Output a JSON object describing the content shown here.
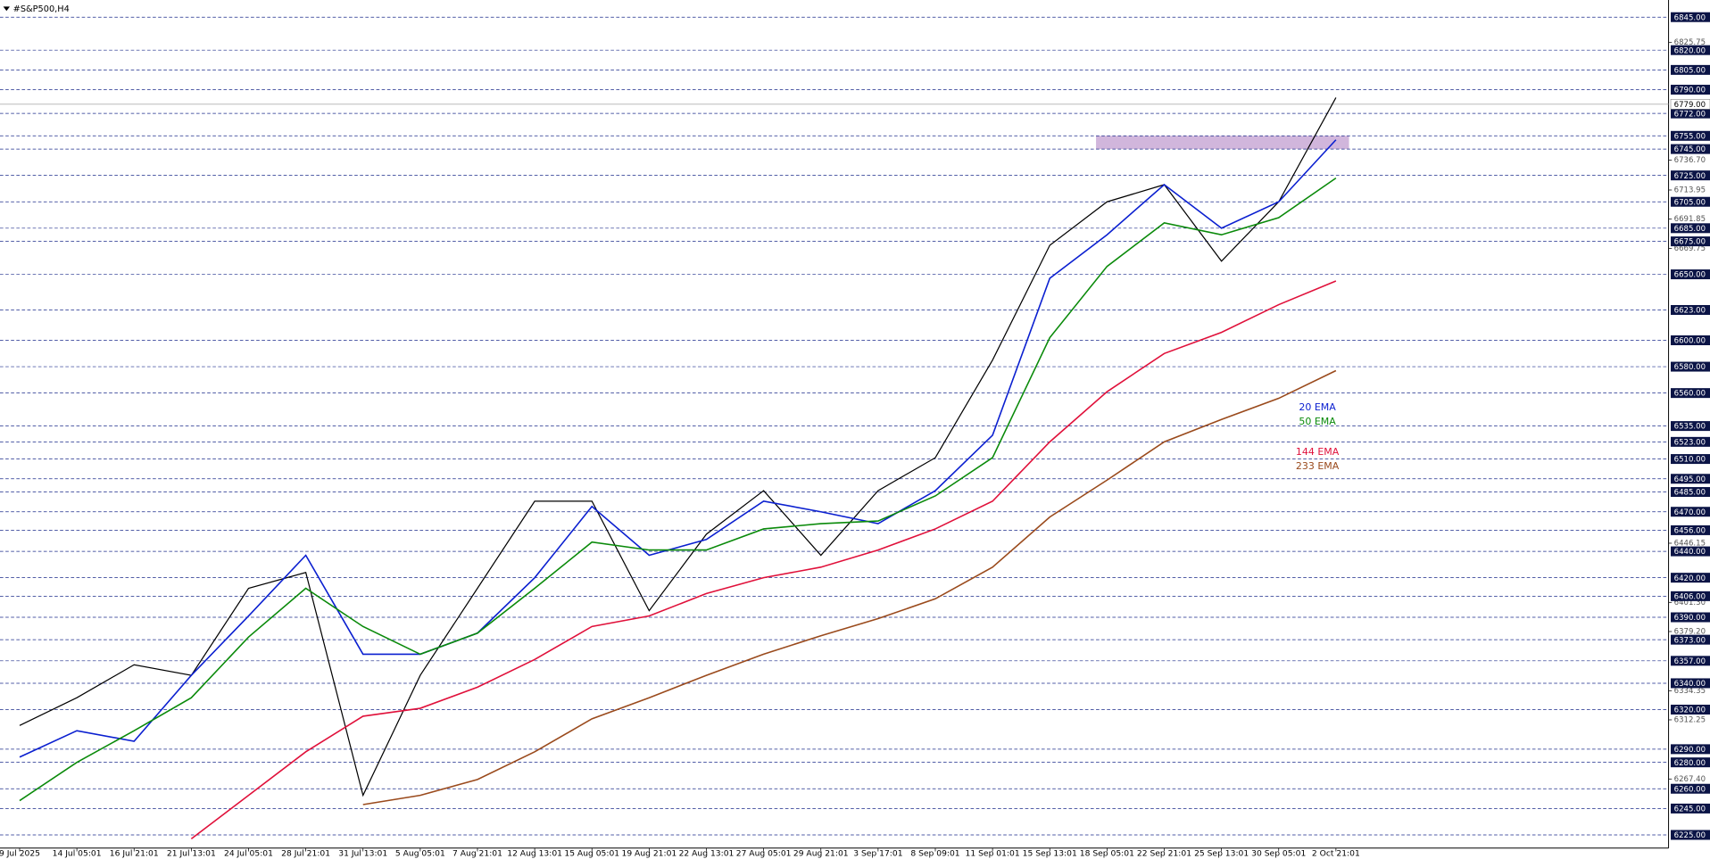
{
  "chart_data": {
    "type": "line",
    "title": "#S&P500,H4",
    "categories": [
      "9 Jul 2025",
      "14 Jul 05:01",
      "16 Jul 21:01",
      "21 Jul 13:01",
      "24 Jul 05:01",
      "28 Jul 21:01",
      "31 Jul 13:01",
      "5 Aug 05:01",
      "7 Aug 21:01",
      "12 Aug 13:01",
      "15 Aug 05:01",
      "19 Aug 21:01",
      "22 Aug 13:01",
      "27 Aug 05:01",
      "29 Aug 21:01",
      "3 Sep 17:01",
      "8 Sep 09:01",
      "11 Sep 01:01",
      "15 Sep 13:01",
      "18 Sep 05:01",
      "22 Sep 21:01",
      "25 Sep 13:01",
      "30 Sep 05:01",
      "2 Oct 21:01"
    ],
    "series": [
      {
        "color": "#000000",
        "values": [
          6308,
          6329,
          6354,
          6346,
          6412,
          6424,
          6255,
          6346,
          6412,
          6478,
          6478,
          6395,
          6453,
          6486,
          6437,
          6486,
          6511,
          6585,
          6672,
          6705,
          6718,
          6660,
          6705,
          6784
        ]
      },
      {
        "name": "20 EMA",
        "color": "#0a1fd0",
        "values": [
          6284,
          6304,
          6296,
          6346,
          6391,
          6437,
          6362,
          6362,
          6378,
          6420,
          6474,
          6437,
          6449,
          6478,
          6470,
          6461,
          6486,
          6528,
          6647,
          6680,
          6718,
          6685,
          6705,
          6752
        ]
      },
      {
        "name": "50 EMA",
        "color": "#0a8a0a",
        "values": [
          6251,
          6280,
          6304,
          6329,
          6375,
          6412,
          6383,
          6362,
          6378,
          6412,
          6447,
          6441,
          6441,
          6457,
          6461,
          6463,
          6482,
          6511,
          6602,
          6656,
          6689,
          6680,
          6693,
          6723
        ]
      },
      {
        "name": "144 EMA",
        "color": "#e0103a",
        "values": [
          null,
          null,
          null,
          6222,
          6255,
          6288,
          6315,
          6321,
          6337,
          6358,
          6383,
          6391,
          6408,
          6420,
          6428,
          6441,
          6457,
          6478,
          6523,
          6561,
          6590,
          6606,
          6627,
          6645
        ]
      },
      {
        "name": "233 EMA",
        "color": "#9a4a1c",
        "values": [
          null,
          null,
          null,
          null,
          null,
          null,
          6248,
          6255,
          6267,
          6288,
          6313,
          6329,
          6346,
          6362,
          6376,
          6389,
          6404,
          6428,
          6466,
          6494,
          6523,
          6540,
          6556,
          6577
        ]
      }
    ],
    "ylim": [
      6215,
      6858
    ],
    "levels": [
      {
        "value": 6845,
        "label": "6845.00"
      },
      {
        "value": 6820,
        "label": "6820.00"
      },
      {
        "value": 6805,
        "label": "6805.00"
      },
      {
        "value": 6790,
        "label": "6790.00"
      },
      {
        "value": 6772,
        "label": "6772.00"
      },
      {
        "value": 6755,
        "label": "6755.00"
      },
      {
        "value": 6745,
        "label": "6745.00"
      },
      {
        "value": 6725,
        "label": "6725.00"
      },
      {
        "value": 6705,
        "label": "6705.00"
      },
      {
        "value": 6685,
        "label": "6685.00"
      },
      {
        "value": 6675,
        "label": "6675.00"
      },
      {
        "value": 6650,
        "label": "6650.00"
      },
      {
        "value": 6623,
        "label": "6623.00"
      },
      {
        "value": 6600,
        "label": "6600.00"
      },
      {
        "value": 6580,
        "label": "6580.00"
      },
      {
        "value": 6560,
        "label": "6560.00"
      },
      {
        "value": 6535,
        "label": "6535.00"
      },
      {
        "value": 6523,
        "label": "6523.00"
      },
      {
        "value": 6510,
        "label": "6510.00"
      },
      {
        "value": 6495,
        "label": "6495.00"
      },
      {
        "value": 6485,
        "label": "6485.00"
      },
      {
        "value": 6470,
        "label": "6470.00"
      },
      {
        "value": 6456,
        "label": "6456.00"
      },
      {
        "value": 6440,
        "label": "6440.00"
      },
      {
        "value": 6420,
        "label": "6420.00"
      },
      {
        "value": 6406,
        "label": "6406.00"
      },
      {
        "value": 6390,
        "label": "6390.00"
      },
      {
        "value": 6373,
        "label": "6373.00"
      },
      {
        "value": 6357,
        "label": "6357.00"
      },
      {
        "value": 6340,
        "label": "6340.00"
      },
      {
        "value": 6320,
        "label": "6320.00"
      },
      {
        "value": 6290,
        "label": "6290.00"
      },
      {
        "value": 6280,
        "label": "6280.00"
      },
      {
        "value": 6260,
        "label": "6260.00"
      },
      {
        "value": 6245,
        "label": "6245.00"
      },
      {
        "value": 6225,
        "label": "6225.00"
      }
    ],
    "yticks": [
      6825.75,
      6713.95,
      6691.85,
      6669.75,
      {
        "value": 6736.7,
        "label": "6736.70"
      },
      6446.15,
      {
        "value": 6401.3,
        "label": "6401.30"
      },
      {
        "value": 6379.2,
        "label": "6379.20"
      },
      6334.35,
      6312.25,
      {
        "value": 6267.4,
        "label": "6267.40"
      }
    ],
    "last_price": {
      "value": 6779,
      "label": "6779.00"
    },
    "zone": [
      6745,
      6755
    ]
  }
}
